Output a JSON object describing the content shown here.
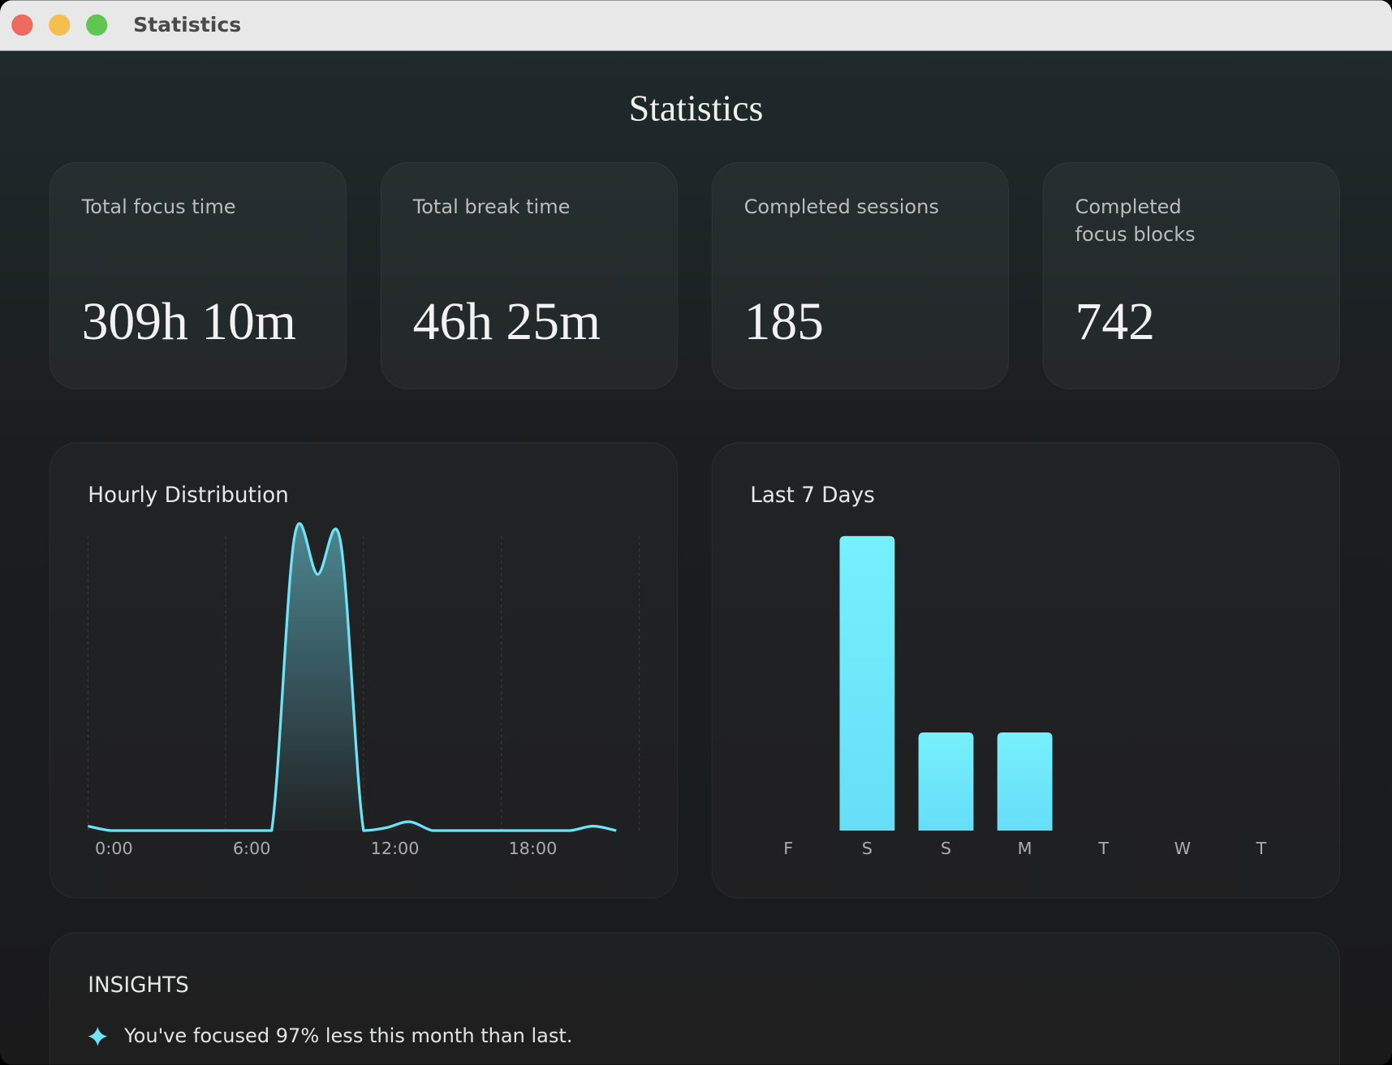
{
  "window": {
    "title": "Statistics"
  },
  "header": {
    "title": "Statistics"
  },
  "cards": [
    {
      "label": [
        "Total focus time"
      ],
      "value": "309h 10m"
    },
    {
      "label": [
        "Total break time"
      ],
      "value": "46h 25m"
    },
    {
      "label": [
        "Completed sessions"
      ],
      "value": "185"
    },
    {
      "label": [
        "Completed",
        "focus blocks"
      ],
      "value": "742"
    }
  ],
  "charts": [
    {
      "type": "line",
      "title": "Hourly Distribution",
      "color": "#6fe3f5",
      "x": [
        0,
        1,
        2,
        3,
        4,
        5,
        6,
        7,
        8,
        9,
        10,
        11,
        12,
        13,
        14,
        15,
        16,
        17,
        18,
        19,
        20,
        21,
        22,
        23
      ],
      "values": [
        1.5,
        0,
        0,
        0,
        0,
        0,
        0,
        0,
        0,
        100,
        87,
        98,
        0,
        1,
        3,
        0,
        0,
        0,
        0,
        0,
        0,
        0,
        1.5,
        0
      ],
      "xlim": [
        0,
        24
      ],
      "xticks": [
        {
          "value": 0,
          "label": "0:00"
        },
        {
          "value": 6,
          "label": "6:00"
        },
        {
          "value": 12,
          "label": "12:00"
        },
        {
          "value": 18,
          "label": "18:00"
        },
        {
          "value": 24,
          "label": ""
        }
      ],
      "grid": true
    },
    {
      "type": "bar",
      "title": "Last 7 Days",
      "color": "#6fe6fa",
      "categories": [
        "F",
        "S",
        "S",
        "M",
        "T",
        "W",
        "T"
      ],
      "values": [
        0,
        3,
        1,
        1,
        0,
        0,
        0
      ]
    }
  ],
  "insights": {
    "title": "INSIGHTS",
    "items": [
      "You've focused 97% less this month than last."
    ]
  }
}
